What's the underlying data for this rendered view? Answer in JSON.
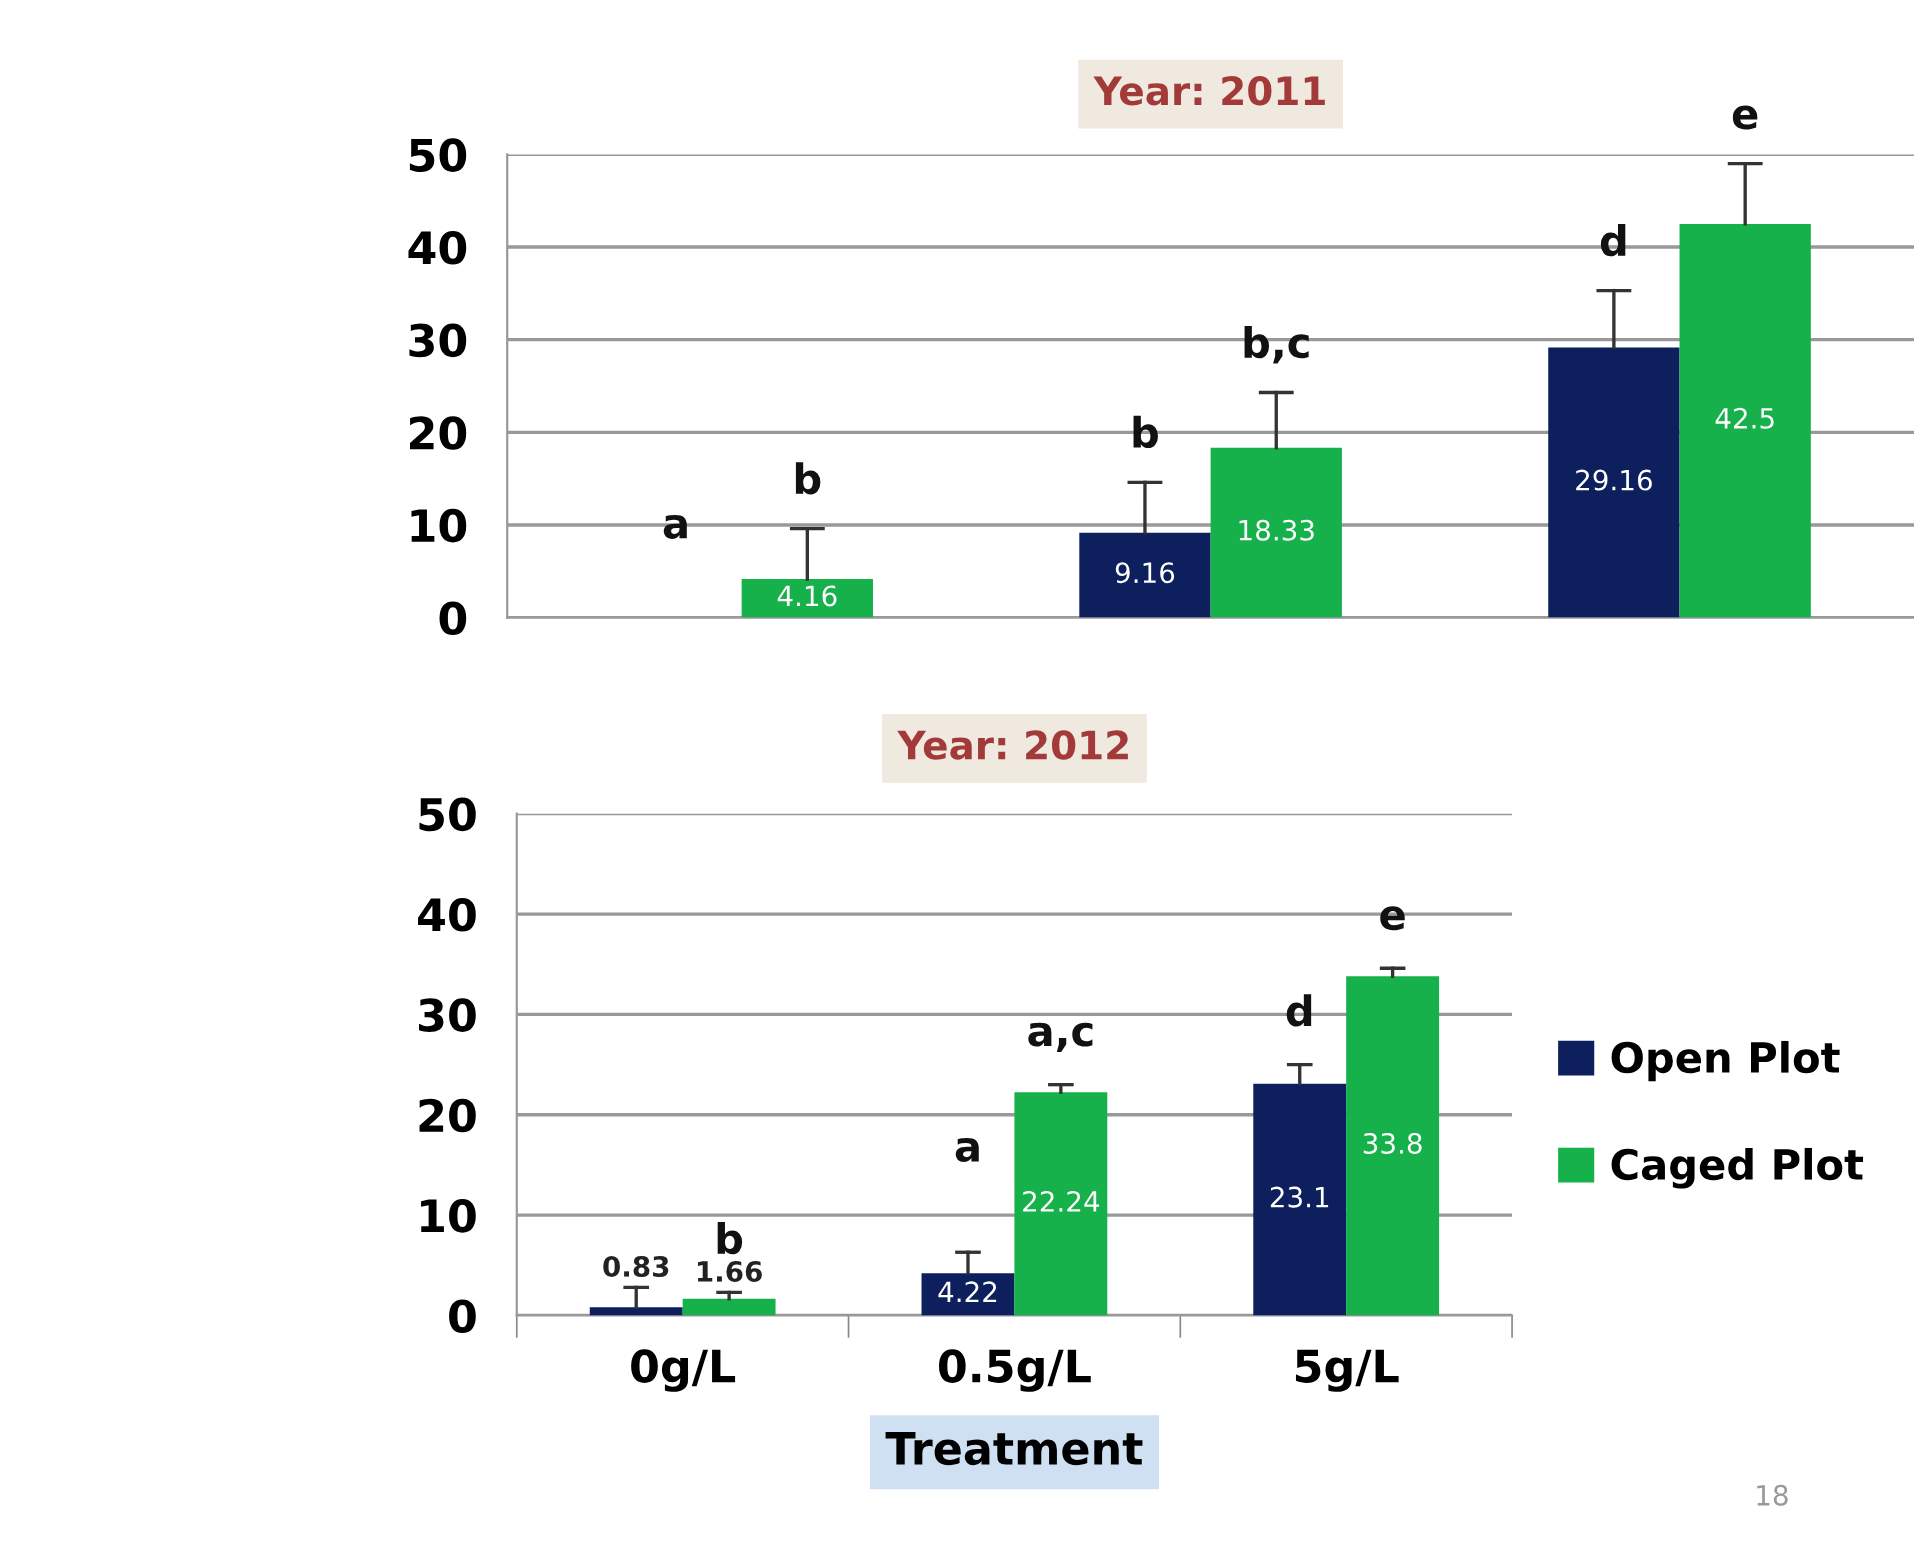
{
  "chart_data": [
    {
      "type": "bar",
      "title": "Year: 2011",
      "categories": [
        null,
        null,
        null
      ],
      "series": [
        {
          "name": "Open Plot",
          "color": "#0d1f5c",
          "values": [
            0,
            9.16,
            29.16
          ],
          "value_labels": [
            null,
            "9.16",
            "29.16"
          ],
          "errors": [
            null,
            [
              9.16,
              14.6
            ],
            [
              29.16,
              35.3
            ]
          ]
        },
        {
          "name": "Caged Plot",
          "color": "#17b14b",
          "values": [
            4.16,
            18.33,
            42.5
          ],
          "value_labels": [
            "4.16",
            "18.33",
            "42.5"
          ],
          "errors": [
            [
              4.16,
              9.6
            ],
            [
              18.33,
              24.3
            ],
            [
              42.5,
              49.0
            ]
          ]
        }
      ],
      "annotations": [
        "a",
        "b",
        "b",
        "b,c",
        "d",
        "e"
      ],
      "ylim": [
        0,
        50
      ],
      "yticks": [
        0,
        10,
        20,
        30,
        40,
        50
      ],
      "grid": "y",
      "tick_labels": "y",
      "legend": "right"
    },
    {
      "type": "bar",
      "title": "Year: 2012",
      "xlabel": "Treatment",
      "categories": [
        "0g/L",
        "0.5g/L",
        "5g/L"
      ],
      "series": [
        {
          "name": "Open Plot",
          "color": "#0d1f5c",
          "values": [
            0.83,
            4.22,
            23.1
          ],
          "value_labels": [
            "0.83",
            "4.22",
            "23.1"
          ],
          "errors": [
            [
              0.83,
              2.8
            ],
            [
              4.22,
              6.3
            ],
            [
              23.1,
              25.0
            ]
          ]
        },
        {
          "name": "Caged Plot",
          "color": "#17b14b",
          "values": [
            1.66,
            22.24,
            33.8
          ],
          "value_labels": [
            "1.66",
            "22.24",
            "33.8"
          ],
          "errors": [
            [
              1.66,
              2.3
            ],
            [
              22.24,
              23.0
            ],
            [
              33.8,
              34.6
            ]
          ]
        }
      ],
      "annotations": [
        "b",
        "a",
        "a,c",
        "d",
        "e"
      ],
      "ylim": [
        0,
        50
      ],
      "yticks": [
        0,
        10,
        20,
        30,
        40,
        50
      ],
      "grid": "y",
      "legend": "right"
    },
    {
      "type": "other",
      "annotations": [
        "18"
      ]
    }
  ]
}
